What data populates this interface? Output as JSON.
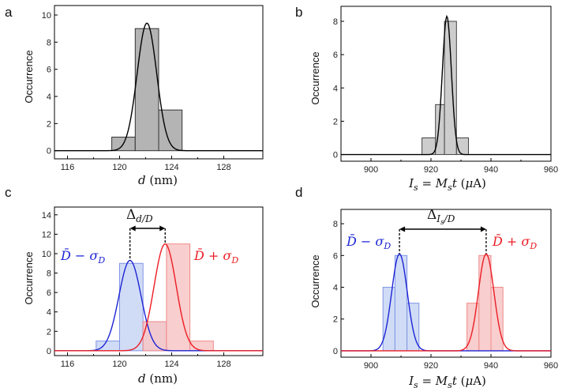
{
  "colors": {
    "gray_fill": "#b4b4b4",
    "gray_fill_light": "#cdcdcd",
    "blue": "#1d24d6",
    "blue_fill": "#c8d6f5",
    "red": "#ec1c24",
    "red_fill": "#f8c6c6",
    "black": "#000000"
  },
  "chart_data": [
    {
      "panel": "a",
      "type": "bar",
      "ylabel": "Occurrence",
      "xlabel": "d (nm)",
      "xlim": [
        115,
        131
      ],
      "ylim": [
        -0.6,
        10.7
      ],
      "xticks": [
        116,
        120,
        124,
        128
      ],
      "yticks": [
        0,
        2,
        4,
        6,
        8,
        10
      ],
      "series": [
        {
          "name": "histogram",
          "color": "gray",
          "bins": [
            {
              "x0": 119.4,
              "x1": 121.2,
              "count": 1
            },
            {
              "x0": 121.2,
              "x1": 123.0,
              "count": 9
            },
            {
              "x0": 123.0,
              "x1": 124.8,
              "count": 3
            }
          ],
          "fit": {
            "mu": 122.1,
            "sigma": 0.75,
            "amp": 9.4
          }
        }
      ]
    },
    {
      "panel": "b",
      "type": "bar",
      "ylabel": "Occurrence",
      "xlabel": "Is = Ms t (µA)",
      "xlim": [
        890,
        960
      ],
      "ylim": [
        -0.4,
        8.9
      ],
      "xticks": [
        900,
        920,
        940,
        960
      ],
      "yticks": [
        0,
        2,
        4,
        6,
        8
      ],
      "series": [
        {
          "name": "histogram",
          "color": "gray_light",
          "bins": [
            {
              "x0": 917,
              "x1": 921.5,
              "count": 1
            },
            {
              "x0": 921.5,
              "x1": 924.5,
              "count": 3
            },
            {
              "x0": 924.5,
              "x1": 928.5,
              "count": 8
            },
            {
              "x0": 928.5,
              "x1": 932.5,
              "count": 1
            }
          ],
          "fit": {
            "mu": 925.3,
            "sigma": 1.5,
            "amp": 8.3
          }
        }
      ]
    },
    {
      "panel": "c",
      "type": "bar",
      "ylabel": "Occurrence",
      "xlabel": "d (nm)",
      "xlim": [
        115,
        131
      ],
      "ylim": [
        -0.5,
        14.8
      ],
      "xticks": [
        116,
        120,
        124,
        128
      ],
      "yticks": [
        0,
        2,
        4,
        6,
        8,
        10,
        12,
        14
      ],
      "series": [
        {
          "name": "D̄ − σD",
          "color": "blue",
          "bins": [
            {
              "x0": 118.2,
              "x1": 120.0,
              "count": 1
            },
            {
              "x0": 120.0,
              "x1": 121.8,
              "count": 9
            },
            {
              "x0": 121.8,
              "x1": 123.6,
              "count": 3
            }
          ],
          "fit": {
            "mu": 120.8,
            "sigma": 0.85,
            "amp": 9.3
          }
        },
        {
          "name": "D̄ + σD",
          "color": "red",
          "bins": [
            {
              "x0": 121.8,
              "x1": 123.6,
              "count": 3
            },
            {
              "x0": 123.6,
              "x1": 125.4,
              "count": 11
            },
            {
              "x0": 125.4,
              "x1": 127.2,
              "count": 1
            }
          ],
          "fit": {
            "mu": 123.5,
            "sigma": 0.85,
            "amp": 11.0
          }
        }
      ],
      "annotation": {
        "label": "Δd/D",
        "from": 120.8,
        "to": 123.5
      }
    },
    {
      "panel": "d",
      "type": "bar",
      "ylabel": "Occurrence",
      "xlabel": "Is = Ms t (µA)",
      "xlim": [
        890,
        960
      ],
      "ylim": [
        -0.4,
        8.9
      ],
      "xticks": [
        900,
        920,
        940,
        960
      ],
      "yticks": [
        0,
        2,
        4,
        6,
        8
      ],
      "series": [
        {
          "name": "D̄ − σD",
          "color": "blue",
          "bins": [
            {
              "x0": 904,
              "x1": 908,
              "count": 4
            },
            {
              "x0": 908,
              "x1": 912,
              "count": 6
            },
            {
              "x0": 912,
              "x1": 916,
              "count": 3
            }
          ],
          "fit": {
            "mu": 909.5,
            "sigma": 2.6,
            "amp": 6.1
          }
        },
        {
          "name": "D̄ + σD",
          "color": "red",
          "bins": [
            {
              "x0": 932,
              "x1": 936,
              "count": 3
            },
            {
              "x0": 936,
              "x1": 940,
              "count": 6
            },
            {
              "x0": 940,
              "x1": 944,
              "count": 4
            }
          ],
          "fit": {
            "mu": 938.4,
            "sigma": 2.6,
            "amp": 6.1
          }
        }
      ],
      "annotation": {
        "label": "ΔIs/D",
        "from": 909.5,
        "to": 938.4
      }
    }
  ]
}
